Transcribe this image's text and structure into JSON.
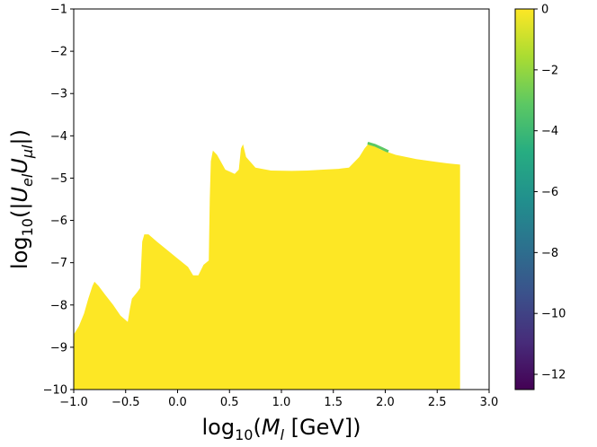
{
  "chart_data": {
    "type": "heatmap",
    "title": "",
    "xlabel": {
      "base": "log",
      "sub": "10",
      "open": "(",
      "var": "M",
      "var_sub": "l",
      "rest": " [GeV])"
    },
    "ylabel": {
      "base": "log",
      "sub": "10",
      "open": "(|",
      "v1": "U",
      "s1": "el",
      "v2": "U",
      "s2": "μl",
      "close": "|)"
    },
    "xlim": [
      -1.0,
      3.0
    ],
    "ylim": [
      -10,
      -1
    ],
    "x_ticks": [
      "−1.0",
      "−0.5",
      "0.0",
      "0.5",
      "1.0",
      "1.5",
      "2.0",
      "2.5",
      "3.0"
    ],
    "x_tick_values": [
      -1.0,
      -0.5,
      0.0,
      0.5,
      1.0,
      1.5,
      2.0,
      2.5,
      3.0
    ],
    "y_ticks": [
      "−10",
      "−9",
      "−8",
      "−7",
      "−6",
      "−5",
      "−4",
      "−3",
      "−2",
      "−1"
    ],
    "y_tick_values": [
      -10,
      -9,
      -8,
      -7,
      -6,
      -5,
      -4,
      -3,
      -2,
      -1
    ],
    "colorbar": {
      "range": [
        -12.5,
        0
      ],
      "ticks": [
        "−12",
        "−10",
        "−8",
        "−6",
        "−4",
        "−2",
        "0"
      ],
      "tick_values": [
        -12,
        -10,
        -8,
        -6,
        -4,
        -2,
        0
      ],
      "colormap": [
        "#440154",
        "#472c7a",
        "#3b518b",
        "#2c718e",
        "#21908d",
        "#27ad81",
        "#5cc863",
        "#aadc32",
        "#fde725"
      ]
    },
    "region": {
      "fill_color": "#fde725",
      "fill_value": 0,
      "upper_boundary": [
        [
          -1.0,
          -8.7
        ],
        [
          -0.95,
          -8.5
        ],
        [
          -0.9,
          -8.2
        ],
        [
          -0.86,
          -7.85
        ],
        [
          -0.82,
          -7.55
        ],
        [
          -0.8,
          -7.45
        ],
        [
          -0.76,
          -7.55
        ],
        [
          -0.7,
          -7.75
        ],
        [
          -0.62,
          -8.0
        ],
        [
          -0.55,
          -8.25
        ],
        [
          -0.48,
          -8.4
        ],
        [
          -0.46,
          -8.1
        ],
        [
          -0.44,
          -7.85
        ],
        [
          -0.39,
          -7.7
        ],
        [
          -0.36,
          -7.6
        ],
        [
          -0.35,
          -7.0
        ],
        [
          -0.34,
          -6.5
        ],
        [
          -0.32,
          -6.33
        ],
        [
          -0.28,
          -6.33
        ],
        [
          -0.2,
          -6.5
        ],
        [
          -0.1,
          -6.7
        ],
        [
          0.0,
          -6.9
        ],
        [
          0.1,
          -7.1
        ],
        [
          0.15,
          -7.3
        ],
        [
          0.2,
          -7.3
        ],
        [
          0.25,
          -7.05
        ],
        [
          0.3,
          -6.95
        ],
        [
          0.31,
          -5.5
        ],
        [
          0.32,
          -4.6
        ],
        [
          0.34,
          -4.35
        ],
        [
          0.38,
          -4.45
        ],
        [
          0.46,
          -4.8
        ],
        [
          0.55,
          -4.9
        ],
        [
          0.59,
          -4.8
        ],
        [
          0.61,
          -4.3
        ],
        [
          0.63,
          -4.2
        ],
        [
          0.66,
          -4.5
        ],
        [
          0.75,
          -4.75
        ],
        [
          0.9,
          -4.82
        ],
        [
          1.1,
          -4.83
        ],
        [
          1.25,
          -4.82
        ],
        [
          1.4,
          -4.8
        ],
        [
          1.55,
          -4.78
        ],
        [
          1.65,
          -4.75
        ],
        [
          1.75,
          -4.5
        ],
        [
          1.8,
          -4.3
        ],
        [
          1.85,
          -4.15
        ],
        [
          1.95,
          -4.32
        ],
        [
          2.1,
          -4.45
        ],
        [
          2.3,
          -4.55
        ],
        [
          2.5,
          -4.62
        ],
        [
          2.6,
          -4.65
        ],
        [
          2.72,
          -4.68
        ]
      ],
      "green_edge": [
        [
          1.83,
          -4.15
        ],
        [
          1.9,
          -4.2
        ],
        [
          1.97,
          -4.28
        ],
        [
          2.03,
          -4.35
        ]
      ]
    }
  }
}
